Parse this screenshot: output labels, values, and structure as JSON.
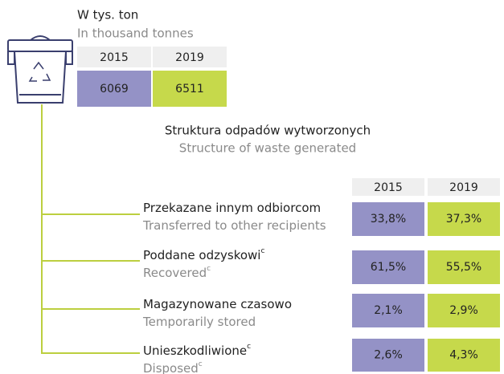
{
  "header": {
    "title": "W tys. ton",
    "subtitle": "In thousand tonnes"
  },
  "totals": {
    "years": [
      "2015",
      "2019"
    ],
    "values": [
      "6069",
      "6511"
    ]
  },
  "structure": {
    "title": "Struktura odpadów wytworzonych",
    "subtitle": "Structure of waste generated",
    "years": [
      "2015",
      "2019"
    ],
    "rows": [
      {
        "label": "Przekazane innym odbiorcom",
        "label_en": "Transferred to other recipients",
        "values": [
          "33,8%",
          "37,3%"
        ]
      },
      {
        "label": "Poddane odzyskowi",
        "note": "c",
        "label_en": "Recovered",
        "note_en": "c",
        "values": [
          "61,5%",
          "55,5%"
        ]
      },
      {
        "label": "Magazynowane czasowo",
        "label_en": "Temporarily stored",
        "values": [
          "2,1%",
          "2,9%"
        ]
      },
      {
        "label": "Unieszkodliwione",
        "note": "c",
        "label_en": "Disposed",
        "note_en": "c",
        "values": [
          "2,6%",
          "4,3%"
        ]
      }
    ]
  }
}
